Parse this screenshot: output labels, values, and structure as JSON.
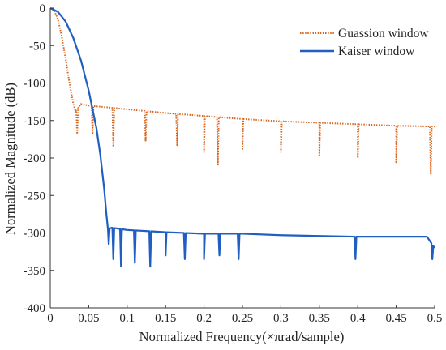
{
  "chart_data": {
    "type": "line",
    "xlabel": "Normalized Frequency(×πrad/sample)",
    "ylabel": "Normalized Magnitude (dB)",
    "xlim": [
      0,
      0.5
    ],
    "ylim": [
      -400,
      0
    ],
    "xticks": [
      "0",
      "0.05",
      "0.1",
      "0.15",
      "0.2",
      "0.25",
      "0.3",
      "0.35",
      "0.4",
      "0.45",
      "0.5"
    ],
    "yticks": [
      "0",
      "-50",
      "-100",
      "-150",
      "-200",
      "-250",
      "-300",
      "-350",
      "-400"
    ],
    "grid": false,
    "legend": "top-right",
    "series": [
      {
        "name": "Guassion window",
        "color": "#D9661F",
        "style": "dotted",
        "x": [
          0,
          0.005,
          0.01,
          0.015,
          0.02,
          0.025,
          0.03,
          0.033,
          0.04,
          0.05,
          0.06,
          0.07,
          0.08,
          0.1,
          0.15,
          0.2,
          0.25,
          0.3,
          0.35,
          0.4,
          0.45,
          0.5
        ],
        "y": [
          0,
          -3,
          -15,
          -38,
          -68,
          -100,
          -128,
          -138,
          -128,
          -130,
          -131,
          -132,
          -133,
          -135,
          -140,
          -144,
          -148,
          -151,
          -153,
          -155,
          -157,
          -158
        ],
        "nulls": [
          {
            "x": 0.035,
            "y": -168
          },
          {
            "x": 0.055,
            "y": -168
          },
          {
            "x": 0.082,
            "y": -185
          },
          {
            "x": 0.124,
            "y": -178
          },
          {
            "x": 0.165,
            "y": -183
          },
          {
            "x": 0.2,
            "y": -192
          },
          {
            "x": 0.218,
            "y": -210
          },
          {
            "x": 0.25,
            "y": -188
          },
          {
            "x": 0.3,
            "y": -192
          },
          {
            "x": 0.35,
            "y": -198
          },
          {
            "x": 0.4,
            "y": -200
          },
          {
            "x": 0.45,
            "y": -207
          },
          {
            "x": 0.495,
            "y": -222
          }
        ]
      },
      {
        "name": "Kaiser window",
        "color": "#1F5FC1",
        "style": "solid",
        "x": [
          0,
          0.01,
          0.02,
          0.03,
          0.04,
          0.05,
          0.06,
          0.065,
          0.07,
          0.073,
          0.075,
          0.08,
          0.1,
          0.15,
          0.2,
          0.25,
          0.3,
          0.35,
          0.4,
          0.45,
          0.49,
          0.5
        ],
        "y": [
          0,
          -5,
          -18,
          -40,
          -70,
          -110,
          -160,
          -195,
          -240,
          -275,
          -295,
          -293,
          -296,
          -299,
          -301,
          -301,
          -303,
          -304,
          -305,
          -305,
          -305,
          -320
        ],
        "nulls": [
          {
            "x": 0.076,
            "y": -315
          },
          {
            "x": 0.082,
            "y": -335
          },
          {
            "x": 0.092,
            "y": -345
          },
          {
            "x": 0.11,
            "y": -340
          },
          {
            "x": 0.13,
            "y": -345
          },
          {
            "x": 0.15,
            "y": -330
          },
          {
            "x": 0.175,
            "y": -335
          },
          {
            "x": 0.2,
            "y": -335
          },
          {
            "x": 0.22,
            "y": -330
          },
          {
            "x": 0.245,
            "y": -335
          },
          {
            "x": 0.397,
            "y": -335
          },
          {
            "x": 0.497,
            "y": -335
          }
        ]
      }
    ]
  }
}
